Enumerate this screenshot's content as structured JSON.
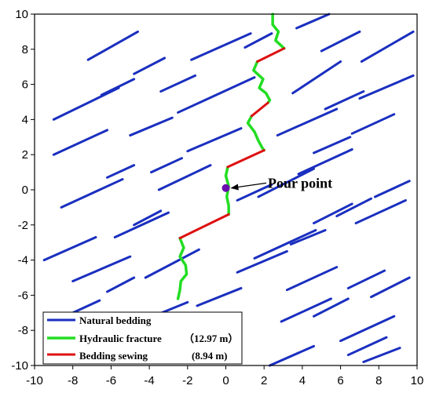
{
  "chart_data": {
    "type": "line",
    "title": "",
    "xlabel": "",
    "ylabel": "",
    "xlim": [
      -10,
      10
    ],
    "ylim": [
      -10,
      10
    ],
    "xticks": [
      -10,
      -8,
      -6,
      -4,
      -2,
      0,
      2,
      4,
      6,
      8,
      10
    ],
    "yticks": [
      -10,
      -8,
      -6,
      -4,
      -2,
      0,
      2,
      4,
      6,
      8,
      10
    ],
    "grid": false,
    "legend_position": "bottom-left",
    "colors": {
      "bedding": "#1a2fbf",
      "fracture": "#22dd22",
      "sewing": "#dd1111",
      "point": "#6a0dad"
    },
    "series": [
      {
        "name": "Natural bedding",
        "kind": "segments",
        "segments": [
          [
            [
              -7.2,
              7.4
            ],
            [
              -4.6,
              9.0
            ]
          ],
          [
            [
              -4.8,
              6.6
            ],
            [
              -3.2,
              7.5
            ]
          ],
          [
            [
              -1.8,
              7.4
            ],
            [
              1.3,
              8.9
            ]
          ],
          [
            [
              1.0,
              8.1
            ],
            [
              2.4,
              8.9
            ]
          ],
          [
            [
              3.7,
              9.2
            ],
            [
              5.4,
              10.0
            ]
          ],
          [
            [
              5.0,
              7.9
            ],
            [
              7.0,
              9.0
            ]
          ],
          [
            [
              7.1,
              7.3
            ],
            [
              9.8,
              9.0
            ]
          ],
          [
            [
              -6.5,
              5.4
            ],
            [
              -4.8,
              6.3
            ]
          ],
          [
            [
              -3.4,
              5.6
            ],
            [
              -1.6,
              6.5
            ]
          ],
          [
            [
              -9.0,
              4.0
            ],
            [
              -5.6,
              5.8
            ]
          ],
          [
            [
              -5.0,
              3.1
            ],
            [
              -2.8,
              4.1
            ]
          ],
          [
            [
              -2.5,
              4.4
            ],
            [
              1.5,
              6.4
            ]
          ],
          [
            [
              3.5,
              5.5
            ],
            [
              6.0,
              7.3
            ]
          ],
          [
            [
              5.2,
              4.6
            ],
            [
              7.2,
              5.6
            ]
          ],
          [
            [
              7.0,
              5.2
            ],
            [
              9.8,
              6.5
            ]
          ],
          [
            [
              -9.0,
              2.0
            ],
            [
              -6.2,
              3.4
            ]
          ],
          [
            [
              -3.9,
              1.0
            ],
            [
              -2.3,
              1.8
            ]
          ],
          [
            [
              -2.0,
              2.2
            ],
            [
              0.8,
              3.5
            ]
          ],
          [
            [
              2.7,
              3.1
            ],
            [
              5.8,
              4.6
            ]
          ],
          [
            [
              4.6,
              2.1
            ],
            [
              6.5,
              3.0
            ]
          ],
          [
            [
              6.6,
              3.2
            ],
            [
              8.8,
              4.3
            ]
          ],
          [
            [
              -8.6,
              -1.0
            ],
            [
              -5.4,
              0.6
            ]
          ],
          [
            [
              -6.2,
              0.7
            ],
            [
              -4.8,
              1.4
            ]
          ],
          [
            [
              -4.8,
              -2.0
            ],
            [
              -3.4,
              -1.2
            ]
          ],
          [
            [
              -3.5,
              0.0
            ],
            [
              -0.8,
              1.4
            ]
          ],
          [
            [
              3.8,
              0.9
            ],
            [
              6.6,
              2.3
            ]
          ],
          [
            [
              5.8,
              -1.5
            ],
            [
              7.6,
              -0.5
            ]
          ],
          [
            [
              1.7,
              -0.4
            ],
            [
              4.6,
              1.2
            ]
          ],
          [
            [
              7.8,
              -0.4
            ],
            [
              9.6,
              0.5
            ]
          ],
          [
            [
              -9.5,
              -4.0
            ],
            [
              -6.8,
              -2.7
            ]
          ],
          [
            [
              -5.8,
              -2.7
            ],
            [
              -3.0,
              -1.3
            ]
          ],
          [
            [
              0.6,
              -0.6
            ],
            [
              2.4,
              0.3
            ]
          ],
          [
            [
              -8.0,
              -5.2
            ],
            [
              -5.0,
              -3.8
            ]
          ],
          [
            [
              -4.2,
              -5.0
            ],
            [
              -1.4,
              -3.4
            ]
          ],
          [
            [
              1.5,
              -3.9
            ],
            [
              4.7,
              -2.3
            ]
          ],
          [
            [
              3.4,
              -3.1
            ],
            [
              5.2,
              -2.3
            ]
          ],
          [
            [
              4.6,
              -1.9
            ],
            [
              6.6,
              -0.8
            ]
          ],
          [
            [
              6.8,
              -1.9
            ],
            [
              9.4,
              -0.6
            ]
          ],
          [
            [
              -9.0,
              -7.5
            ],
            [
              -6.6,
              -6.3
            ]
          ],
          [
            [
              -6.2,
              -5.8
            ],
            [
              -4.8,
              -5.0
            ]
          ],
          [
            [
              -1.5,
              -6.6
            ],
            [
              0.8,
              -5.6
            ]
          ],
          [
            [
              0.6,
              -4.7
            ],
            [
              3.2,
              -3.5
            ]
          ],
          [
            [
              3.2,
              -5.7
            ],
            [
              5.8,
              -4.4
            ]
          ],
          [
            [
              -5.5,
              -8.6
            ],
            [
              -3.8,
              -7.6
            ]
          ],
          [
            [
              -3.8,
              -7.2
            ],
            [
              -2.0,
              -6.4
            ]
          ],
          [
            [
              2.9,
              -7.5
            ],
            [
              5.5,
              -6.2
            ]
          ],
          [
            [
              6.4,
              -5.6
            ],
            [
              8.3,
              -4.6
            ]
          ],
          [
            [
              6.0,
              -8.6
            ],
            [
              8.8,
              -7.2
            ]
          ],
          [
            [
              4.6,
              -7.2
            ],
            [
              6.4,
              -6.2
            ]
          ],
          [
            [
              7.6,
              -6.1
            ],
            [
              9.6,
              -5.0
            ]
          ],
          [
            [
              2.3,
              -10.0
            ],
            [
              4.6,
              -8.9
            ]
          ],
          [
            [
              6.4,
              -9.4
            ],
            [
              8.4,
              -8.4
            ]
          ],
          [
            [
              7.2,
              -9.8
            ],
            [
              9.1,
              -9.0
            ]
          ]
        ]
      },
      {
        "name": "Hydraulic fracture",
        "length_label": "（12.97 m）",
        "kind": "polylines",
        "paths": [
          [
            [
              2.45,
              10.0
            ],
            [
              2.45,
              9.4
            ],
            [
              2.75,
              9.0
            ],
            [
              2.6,
              8.5
            ],
            [
              3.05,
              8.05
            ]
          ],
          [
            [
              1.65,
              7.3
            ],
            [
              1.45,
              6.8
            ],
            [
              1.95,
              6.3
            ],
            [
              1.75,
              5.8
            ],
            [
              2.1,
              5.5
            ],
            [
              2.3,
              5.1
            ],
            [
              2.2,
              4.95
            ]
          ],
          [
            [
              1.35,
              4.2
            ],
            [
              1.15,
              3.8
            ],
            [
              1.5,
              3.3
            ],
            [
              1.7,
              2.8
            ],
            [
              1.9,
              2.4
            ],
            [
              2.0,
              2.25
            ]
          ],
          [
            [
              0.1,
              1.3
            ],
            [
              0.0,
              0.8
            ],
            [
              0.15,
              0.2
            ],
            [
              0.05,
              -0.4
            ],
            [
              0.15,
              -0.9
            ],
            [
              0.15,
              -1.4
            ]
          ],
          [
            [
              -2.4,
              -2.75
            ],
            [
              -2.2,
              -3.3
            ],
            [
              -2.4,
              -3.8
            ],
            [
              -2.1,
              -4.3
            ],
            [
              -2.05,
              -4.8
            ],
            [
              -2.35,
              -5.2
            ],
            [
              -2.4,
              -5.7
            ],
            [
              -2.5,
              -6.2
            ]
          ]
        ]
      },
      {
        "name": "Bedding sewing",
        "length_label": "(8.94 m)",
        "kind": "segments",
        "segments": [
          [
            [
              3.05,
              8.05
            ],
            [
              1.65,
              7.3
            ]
          ],
          [
            [
              2.2,
              4.95
            ],
            [
              1.35,
              4.2
            ]
          ],
          [
            [
              2.0,
              2.25
            ],
            [
              0.1,
              1.3
            ]
          ],
          [
            [
              0.15,
              -1.4
            ],
            [
              -2.4,
              -2.75
            ]
          ]
        ]
      }
    ],
    "annotations": [
      {
        "label": "Pour point",
        "point": [
          0.0,
          0.1
        ],
        "text_at": [
          0.8,
          0.25
        ]
      }
    ]
  }
}
